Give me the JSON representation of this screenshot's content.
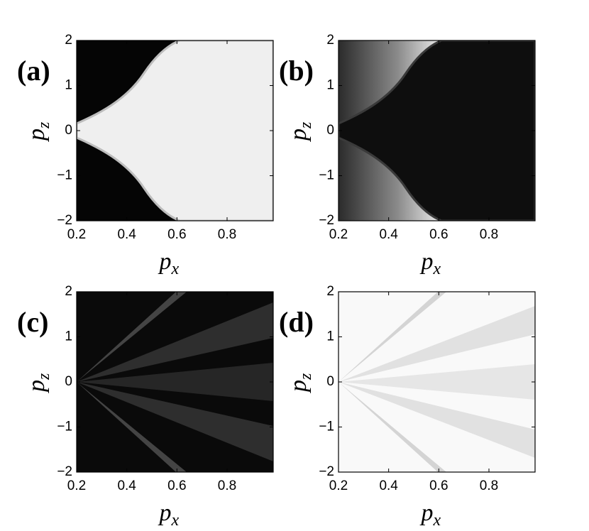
{
  "chart_data": [
    {
      "type": "heatmap",
      "panel_label": "(a)",
      "xlabel": {
        "symbol": "p",
        "subscript": "x"
      },
      "ylabel": {
        "symbol": "p",
        "subscript": "z"
      },
      "xlim": [
        0.2,
        0.984
      ],
      "ylim": [
        -2,
        2
      ],
      "xticks": [
        0.2,
        0.4,
        0.6,
        0.8
      ],
      "yticks": [
        {
          "value": -2,
          "label": "−2"
        },
        {
          "value": -1,
          "label": "−1"
        },
        0,
        1,
        2
      ]
    },
    {
      "type": "heatmap",
      "panel_label": "(b)",
      "xlabel": {
        "symbol": "p",
        "subscript": "x"
      },
      "ylabel": {
        "symbol": "p",
        "subscript": "z"
      },
      "xlim": [
        0.2,
        0.984
      ],
      "ylim": [
        -2,
        2
      ],
      "xticks": [
        0.2,
        0.4,
        0.6,
        0.8
      ],
      "yticks": [
        {
          "value": -2,
          "label": "−2"
        },
        {
          "value": -1,
          "label": "−1"
        },
        0,
        1,
        2
      ]
    },
    {
      "type": "heatmap",
      "panel_label": "(c)",
      "xlabel": {
        "symbol": "p",
        "subscript": "x"
      },
      "ylabel": {
        "symbol": "p",
        "subscript": "z"
      },
      "xlim": [
        0.2,
        0.984
      ],
      "ylim": [
        -2,
        2
      ],
      "xticks": [
        0.2,
        0.4,
        0.6,
        0.8
      ],
      "yticks": [
        {
          "value": -2,
          "label": "−2"
        },
        {
          "value": -1,
          "label": "−1"
        },
        0,
        1,
        2
      ]
    },
    {
      "type": "heatmap",
      "panel_label": "(d)",
      "xlabel": {
        "symbol": "p",
        "subscript": "x"
      },
      "ylabel": {
        "symbol": "p",
        "subscript": "z"
      },
      "xlim": [
        0.2,
        0.984
      ],
      "ylim": [
        -2,
        2
      ],
      "xticks": [
        0.2,
        0.4,
        0.6,
        0.8
      ],
      "yticks": [
        {
          "value": -2,
          "label": "−2"
        },
        {
          "value": -1,
          "label": "−1"
        },
        0,
        1,
        2
      ]
    }
  ]
}
